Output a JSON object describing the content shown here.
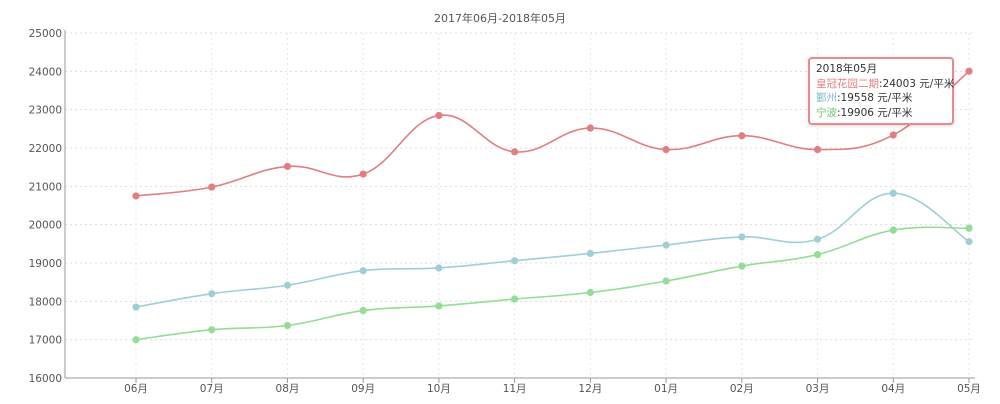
{
  "chart_data": {
    "type": "line",
    "title": "2017年06月-2018年05月",
    "categories": [
      "06月",
      "07月",
      "08月",
      "09月",
      "10月",
      "11月",
      "12月",
      "01月",
      "02月",
      "03月",
      "04月",
      "05月"
    ],
    "ylim": [
      16000,
      25000
    ],
    "yticks": [
      16000,
      17000,
      18000,
      19000,
      20000,
      21000,
      22000,
      23000,
      24000,
      25000
    ],
    "grid": true,
    "smooth": true,
    "series": [
      {
        "name": "皇冠花园二期",
        "color": "#e07f82",
        "values": [
          20750,
          20980,
          21520,
          21320,
          22850,
          21900,
          22520,
          21960,
          22320,
          21960,
          22340,
          24003
        ]
      },
      {
        "name": "鄞州",
        "color": "#9fcfd5",
        "values": [
          17850,
          18200,
          18420,
          18800,
          18870,
          19060,
          19250,
          19470,
          19680,
          19620,
          20820,
          19558
        ]
      },
      {
        "name": "宁波",
        "color": "#93dd95",
        "values": [
          17000,
          17260,
          17370,
          17760,
          17880,
          18060,
          18230,
          18530,
          18920,
          19220,
          19860,
          19906
        ]
      }
    ],
    "tooltip": {
      "title": "2018年05月",
      "rows": [
        {
          "label": "皇冠花园二期",
          "value": ":24003 元/平米",
          "color": "#e07f82"
        },
        {
          "label": "鄞州",
          "value": ":19558 元/平米",
          "color": "#7fbfca"
        },
        {
          "label": "宁波",
          "value": ":19906 元/平米",
          "color": "#6cc96f"
        }
      ]
    }
  }
}
